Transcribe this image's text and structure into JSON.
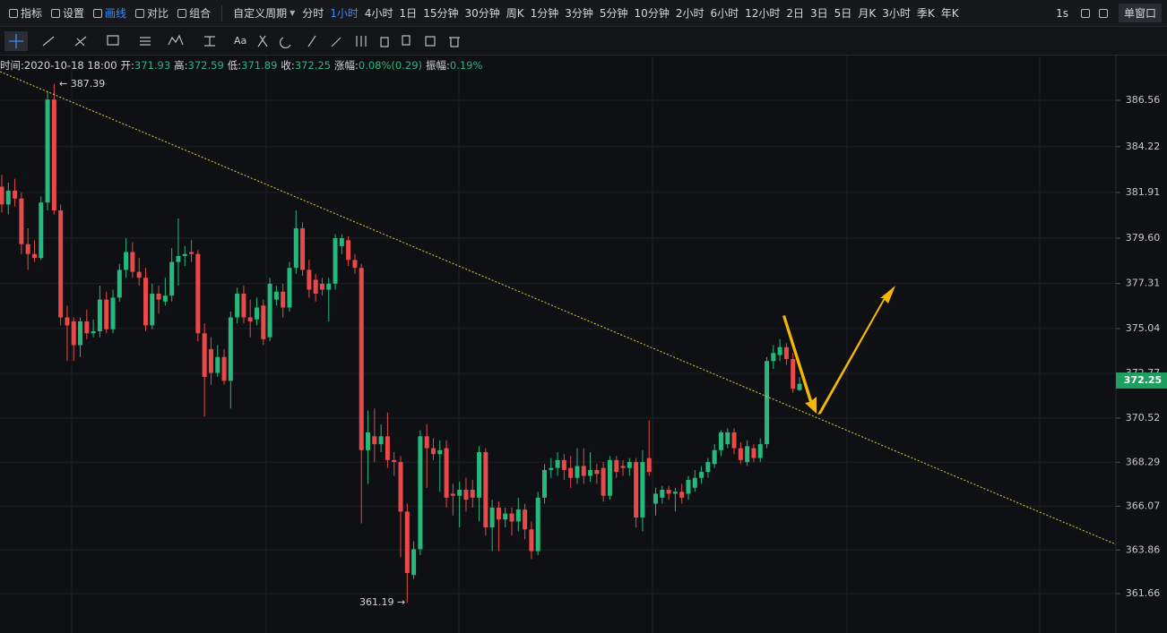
{
  "toolbar": {
    "left": [
      "指标",
      "设置",
      "画线",
      "对比",
      "组合"
    ],
    "period_menu": "自定义周期",
    "periods": [
      "分时",
      "1小时",
      "4小时",
      "1日",
      "15分钟",
      "30分钟",
      "周K",
      "1分钟",
      "3分钟",
      "5分钟",
      "10分钟",
      "2小时",
      "6小时",
      "12小时",
      "2日",
      "3日",
      "5日",
      "月K",
      "3小时",
      "季K",
      "年K"
    ],
    "active_period": "1小时",
    "right": [
      "1s"
    ],
    "window": "单窗口"
  },
  "drawing_toolbar": {
    "text_tool": "Aa"
  },
  "info_bar": [
    {
      "label": "时间:",
      "value": "2020-10-18 18:00"
    },
    {
      "label": "开:",
      "value": "371.93"
    },
    {
      "label": "高:",
      "value": "372.59"
    },
    {
      "label": "低:",
      "value": "371.89"
    },
    {
      "label": "收:",
      "value": "372.25"
    },
    {
      "label": "涨幅:",
      "value": "0.08%(0.29)"
    },
    {
      "label": "振幅:",
      "value": "0.19%"
    }
  ],
  "chart_data": {
    "type": "candlestick",
    "up_color": "#26b97e",
    "down_color": "#e8494a",
    "ylim": [
      359.67,
      388.82
    ],
    "yticks": [
      386.56,
      384.22,
      381.91,
      {
        "value": 379.6,
        "label": "379.60"
      },
      377.31,
      375.04,
      372.77,
      370.52,
      368.29,
      366.07,
      363.86,
      361.66
    ],
    "high_label": "← 387.39",
    "low_label": "361.19 →",
    "last_price": "372.25",
    "candles": [
      [
        382.2,
        382.8,
        380.9,
        381.3
      ],
      [
        381.3,
        382.4,
        380.8,
        382.0
      ],
      [
        382.0,
        382.6,
        381.2,
        381.6
      ],
      [
        381.6,
        381.9,
        378.8,
        379.3
      ],
      [
        379.3,
        380.1,
        378.0,
        378.8
      ],
      [
        378.8,
        379.5,
        378.4,
        378.6
      ],
      [
        378.6,
        381.7,
        378.5,
        381.4
      ],
      [
        381.4,
        387.0,
        381.0,
        386.6
      ],
      [
        386.6,
        387.39,
        380.8,
        381.0
      ],
      [
        381.0,
        381.3,
        375.2,
        375.6
      ],
      [
        375.6,
        376.2,
        373.4,
        375.2
      ],
      [
        375.4,
        375.6,
        373.4,
        374.2
      ],
      [
        374.2,
        375.6,
        373.6,
        375.4
      ],
      [
        375.4,
        376.0,
        374.5,
        374.8
      ],
      [
        374.8,
        375.5,
        374.6,
        374.9
      ],
      [
        374.9,
        377.2,
        374.6,
        376.5
      ],
      [
        376.5,
        376.9,
        374.8,
        375.0
      ],
      [
        375.0,
        377.0,
        374.8,
        376.6
      ],
      [
        376.6,
        378.3,
        376.4,
        378.0
      ],
      [
        378.0,
        379.6,
        377.6,
        378.9
      ],
      [
        378.9,
        379.4,
        377.6,
        377.9
      ],
      [
        377.9,
        378.6,
        377.2,
        377.6
      ],
      [
        377.6,
        378.1,
        374.9,
        375.2
      ],
      [
        375.2,
        377.3,
        375.0,
        376.8
      ],
      [
        376.8,
        377.2,
        375.8,
        376.5
      ],
      [
        376.4,
        377.6,
        376.2,
        376.7
      ],
      [
        376.7,
        379.1,
        376.4,
        378.4
      ],
      [
        378.4,
        380.6,
        377.2,
        378.7
      ],
      [
        378.7,
        379.2,
        378.2,
        378.8
      ],
      [
        378.9,
        379.5,
        378.4,
        378.8
      ],
      [
        378.8,
        379.0,
        374.4,
        374.8
      ],
      [
        374.8,
        375.3,
        370.6,
        372.6
      ],
      [
        374.0,
        374.6,
        372.2,
        372.8
      ],
      [
        372.8,
        374.2,
        372.6,
        373.6
      ],
      [
        373.6,
        374.0,
        372.2,
        372.4
      ],
      [
        372.4,
        375.9,
        371.0,
        375.6
      ],
      [
        375.6,
        377.1,
        375.3,
        376.8
      ],
      [
        376.8,
        377.2,
        375.3,
        375.6
      ],
      [
        375.6,
        376.5,
        374.6,
        375.4
      ],
      [
        375.5,
        376.6,
        375.2,
        376.1
      ],
      [
        376.2,
        376.5,
        374.2,
        374.5
      ],
      [
        374.6,
        377.6,
        374.4,
        377.3
      ],
      [
        376.5,
        377.2,
        376.2,
        376.9
      ],
      [
        376.9,
        377.3,
        375.6,
        376.1
      ],
      [
        376.1,
        378.4,
        375.9,
        378.1
      ],
      [
        378.1,
        381.0,
        377.8,
        380.1
      ],
      [
        380.1,
        380.4,
        377.7,
        378.0
      ],
      [
        378.0,
        378.5,
        376.6,
        377.0
      ],
      [
        377.5,
        377.8,
        376.4,
        376.8
      ],
      [
        377.3,
        377.6,
        376.7,
        377.0
      ],
      [
        377.0,
        377.6,
        375.4,
        377.3
      ],
      [
        377.3,
        379.8,
        377.0,
        379.6
      ],
      [
        379.2,
        379.8,
        378.8,
        379.6
      ],
      [
        379.5,
        379.7,
        378.2,
        378.5
      ],
      [
        378.5,
        378.8,
        377.8,
        378.1
      ],
      [
        378.1,
        378.3,
        365.2,
        368.9
      ],
      [
        368.9,
        370.9,
        367.2,
        369.8
      ],
      [
        369.6,
        371.0,
        368.3,
        369.2
      ],
      [
        369.2,
        370.2,
        368.8,
        369.6
      ],
      [
        369.6,
        370.8,
        368.0,
        368.4
      ],
      [
        368.4,
        368.8,
        367.6,
        368.3
      ],
      [
        368.3,
        368.6,
        363.5,
        365.8
      ],
      [
        365.8,
        366.2,
        361.19,
        362.7
      ],
      [
        362.6,
        364.3,
        362.4,
        363.9
      ],
      [
        363.9,
        369.9,
        363.6,
        369.6
      ],
      [
        369.6,
        370.2,
        367.0,
        369.0
      ],
      [
        369.0,
        369.5,
        368.4,
        368.7
      ],
      [
        368.7,
        369.4,
        366.8,
        368.9
      ],
      [
        369.0,
        369.4,
        366.0,
        366.5
      ],
      [
        366.7,
        367.2,
        365.6,
        366.6
      ],
      [
        366.6,
        367.3,
        365.0,
        366.9
      ],
      [
        366.9,
        367.5,
        365.8,
        366.4
      ],
      [
        366.9,
        367.4,
        366.0,
        366.5
      ],
      [
        366.5,
        369.1,
        365.3,
        368.8
      ],
      [
        368.8,
        369.0,
        364.6,
        365.0
      ],
      [
        365.0,
        366.4,
        363.8,
        366.0
      ],
      [
        366.0,
        366.3,
        363.8,
        365.4
      ],
      [
        365.4,
        366.0,
        365.0,
        365.7
      ],
      [
        365.7,
        366.0,
        364.6,
        365.3
      ],
      [
        365.3,
        366.5,
        364.8,
        365.9
      ],
      [
        365.9,
        366.2,
        364.4,
        364.9
      ],
      [
        364.9,
        365.3,
        363.4,
        363.8
      ],
      [
        363.8,
        366.8,
        363.6,
        366.5
      ],
      [
        366.5,
        368.2,
        366.2,
        367.9
      ],
      [
        367.9,
        368.5,
        367.5,
        368.0
      ],
      [
        368.0,
        368.8,
        367.6,
        368.4
      ],
      [
        368.4,
        368.7,
        367.4,
        367.9
      ],
      [
        368.0,
        368.6,
        367.0,
        367.5
      ],
      [
        367.5,
        369.0,
        367.2,
        368.1
      ],
      [
        368.1,
        369.0,
        367.2,
        367.6
      ],
      [
        367.6,
        368.8,
        367.3,
        367.9
      ],
      [
        367.9,
        368.2,
        367.2,
        367.7
      ],
      [
        368.0,
        368.3,
        366.3,
        366.6
      ],
      [
        366.6,
        368.6,
        366.4,
        368.4
      ],
      [
        368.4,
        368.6,
        367.5,
        367.8
      ],
      [
        368.1,
        368.4,
        367.6,
        368.0
      ],
      [
        368.0,
        368.5,
        367.6,
        368.3
      ],
      [
        368.3,
        368.5,
        365.0,
        365.5
      ],
      [
        365.5,
        368.9,
        364.8,
        368.3
      ],
      [
        368.5,
        370.4,
        367.6,
        367.8
      ],
      [
        366.2,
        367.0,
        365.6,
        366.7
      ],
      [
        366.5,
        367.1,
        366.2,
        366.9
      ],
      [
        366.9,
        367.1,
        366.4,
        366.7
      ],
      [
        366.7,
        367.0,
        365.8,
        366.8
      ],
      [
        366.8,
        367.2,
        366.2,
        366.5
      ],
      [
        366.7,
        367.6,
        366.4,
        367.4
      ],
      [
        367.0,
        367.9,
        366.8,
        367.5
      ],
      [
        367.5,
        368.1,
        367.2,
        367.8
      ],
      [
        367.8,
        368.5,
        367.5,
        368.3
      ],
      [
        368.2,
        369.2,
        368.0,
        368.9
      ],
      [
        368.9,
        369.9,
        368.6,
        369.8
      ],
      [
        369.2,
        370.0,
        369.0,
        369.8
      ],
      [
        369.8,
        370.0,
        368.7,
        369.0
      ],
      [
        369.0,
        369.3,
        368.2,
        368.4
      ],
      [
        368.3,
        369.4,
        368.1,
        369.1
      ],
      [
        369.0,
        369.2,
        368.3,
        368.5
      ],
      [
        368.5,
        369.5,
        368.3,
        369.2
      ],
      [
        369.2,
        373.6,
        369.0,
        373.4
      ],
      [
        373.4,
        374.2,
        373.0,
        373.8
      ],
      [
        373.7,
        374.5,
        373.4,
        374.1
      ],
      [
        374.1,
        374.3,
        373.2,
        373.5
      ],
      [
        373.5,
        373.8,
        371.8,
        372.0
      ],
      [
        371.93,
        372.59,
        371.89,
        372.25
      ]
    ]
  }
}
